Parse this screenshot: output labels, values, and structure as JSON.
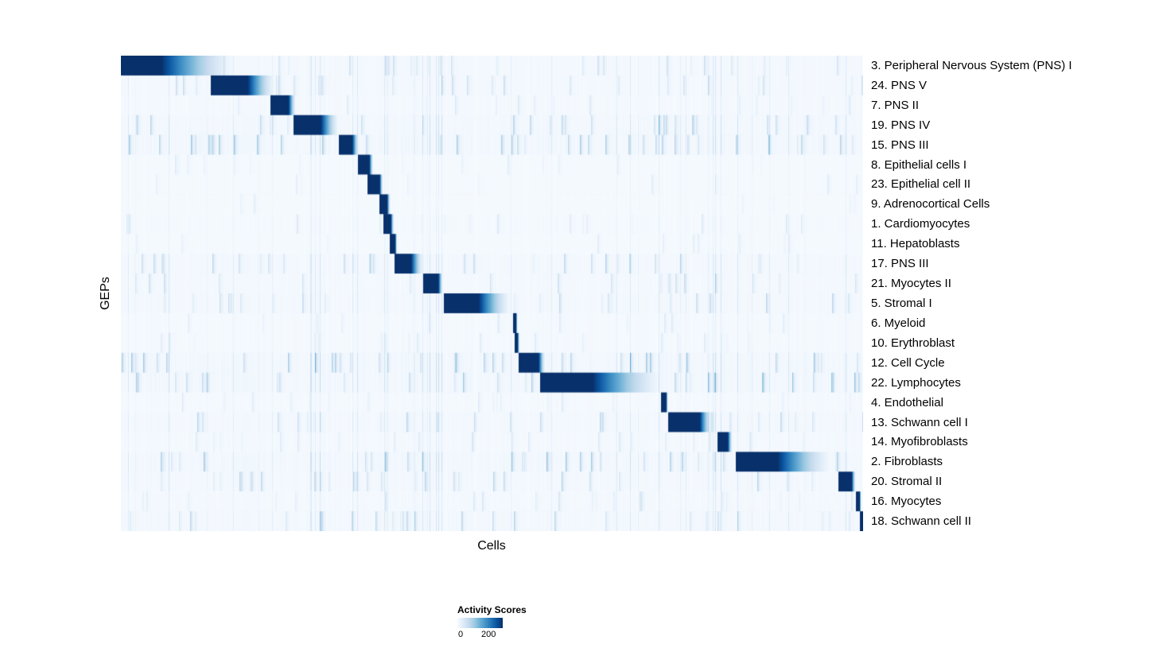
{
  "chart_data": {
    "type": "heatmap",
    "title": "",
    "xlabel": "Cells",
    "ylabel": "GEPs",
    "value_range": [
      0,
      200
    ],
    "colormap": [
      "#f7fbff",
      "#deebf7",
      "#c6dbef",
      "#9ecae1",
      "#6baed6",
      "#4292c6",
      "#2171b5",
      "#08519c",
      "#08306b"
    ],
    "legend": {
      "title": "Activity Scores",
      "min_label": "0",
      "max_label": "200"
    },
    "rows": [
      {
        "label": "3. Peripheral Nervous System (PNS) I",
        "block_start": 0.0,
        "block_end": 0.051,
        "fade_end": 0.16,
        "noise": 0.5
      },
      {
        "label": "24. PNS V",
        "block_start": 0.121,
        "block_end": 0.169,
        "fade_end": 0.21,
        "noise": 0.5
      },
      {
        "label": "7. PNS II",
        "block_start": 0.201,
        "block_end": 0.225,
        "fade_end": 0.236,
        "noise": 0.35
      },
      {
        "label": "19. PNS IV",
        "block_start": 0.232,
        "block_end": 0.268,
        "fade_end": 0.295,
        "noise": 0.7
      },
      {
        "label": "15. PNS III",
        "block_start": 0.293,
        "block_end": 0.311,
        "fade_end": 0.321,
        "noise": 0.8
      },
      {
        "label": "8. Epithelial cells I",
        "block_start": 0.319,
        "block_end": 0.334,
        "fade_end": 0.34,
        "noise": 0.25
      },
      {
        "label": "23. Epithelial cell II",
        "block_start": 0.332,
        "block_end": 0.348,
        "fade_end": 0.353,
        "noise": 0.25
      },
      {
        "label": "9. Adrenocortical Cells",
        "block_start": 0.348,
        "block_end": 0.358,
        "fade_end": 0.363,
        "noise": 0.2
      },
      {
        "label": "1. Cardiomyocytes",
        "block_start": 0.353,
        "block_end": 0.363,
        "fade_end": 0.368,
        "noise": 0.3
      },
      {
        "label": "11. Hepatoblasts",
        "block_start": 0.362,
        "block_end": 0.369,
        "fade_end": 0.372,
        "noise": 0.25
      },
      {
        "label": "17. PNS III",
        "block_start": 0.368,
        "block_end": 0.39,
        "fade_end": 0.408,
        "noise": 0.6
      },
      {
        "label": "21. Myocytes II",
        "block_start": 0.407,
        "block_end": 0.427,
        "fade_end": 0.434,
        "noise": 0.5
      },
      {
        "label": "5. Stromal I",
        "block_start": 0.435,
        "block_end": 0.48,
        "fade_end": 0.528,
        "noise": 0.6
      },
      {
        "label": "6. Myeloid",
        "block_start": 0.528,
        "block_end": 0.532,
        "fade_end": 0.534,
        "noise": 0.3
      },
      {
        "label": "10. Erythroblast",
        "block_start": 0.53,
        "block_end": 0.534,
        "fade_end": 0.537,
        "noise": 0.3
      },
      {
        "label": "12. Cell Cycle",
        "block_start": 0.535,
        "block_end": 0.562,
        "fade_end": 0.572,
        "noise": 0.8
      },
      {
        "label": "22. Lymphocytes",
        "block_start": 0.564,
        "block_end": 0.632,
        "fade_end": 0.735,
        "noise": 0.8
      },
      {
        "label": "4. Endothelial",
        "block_start": 0.727,
        "block_end": 0.734,
        "fade_end": 0.737,
        "noise": 0.3
      },
      {
        "label": "13. Schwann cell I",
        "block_start": 0.737,
        "block_end": 0.779,
        "fade_end": 0.797,
        "noise": 0.6
      },
      {
        "label": "14. Myofibroblasts",
        "block_start": 0.803,
        "block_end": 0.817,
        "fade_end": 0.824,
        "noise": 0.35
      },
      {
        "label": "2. Fibroblasts",
        "block_start": 0.828,
        "block_end": 0.882,
        "fade_end": 0.962,
        "noise": 0.8
      },
      {
        "label": "20. Stromal II",
        "block_start": 0.966,
        "block_end": 0.984,
        "fade_end": 0.99,
        "noise": 0.6
      },
      {
        "label": "16. Myocytes",
        "block_start": 0.99,
        "block_end": 0.995,
        "fade_end": 0.997,
        "noise": 0.4
      },
      {
        "label": "18. Schwann cell II",
        "block_start": 0.995,
        "block_end": 1.0,
        "fade_end": 1.0,
        "noise": 0.6
      }
    ]
  }
}
